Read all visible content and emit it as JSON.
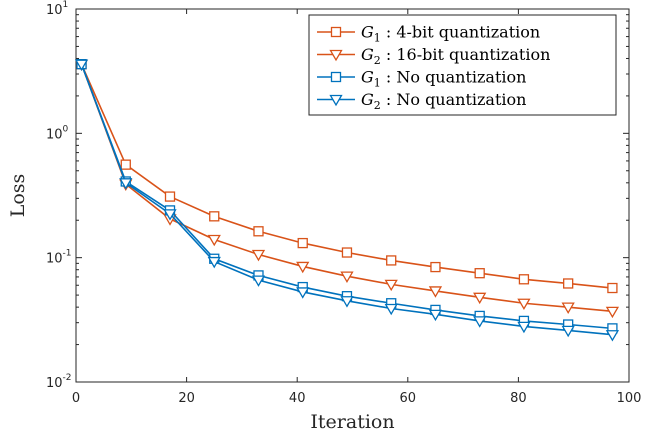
{
  "chart_data": {
    "type": "line",
    "title": "",
    "xlabel": "Iteration",
    "ylabel": "Loss",
    "xlim": [
      0,
      100
    ],
    "ylim": [
      0.01,
      10
    ],
    "yscale": "log",
    "xticks": [
      0,
      20,
      40,
      60,
      80,
      100
    ],
    "yticks": [
      {
        "value": 0.01,
        "base": "10",
        "exp": "-2"
      },
      {
        "value": 0.1,
        "base": "10",
        "exp": "-1"
      },
      {
        "value": 1,
        "base": "10",
        "exp": "0"
      },
      {
        "value": 10,
        "base": "10",
        "exp": "1"
      }
    ],
    "grid": false,
    "legend_position": "top-right",
    "x": [
      1,
      9,
      17,
      25,
      33,
      41,
      49,
      57,
      65,
      73,
      81,
      89,
      97
    ],
    "series": [
      {
        "name": "4-bit quantization",
        "symbol": "G1",
        "marker": "square",
        "color": "#D95319",
        "values": [
          3.6,
          0.56,
          0.31,
          0.215,
          0.163,
          0.131,
          0.11,
          0.095,
          0.084,
          0.075,
          0.067,
          0.062,
          0.057
        ]
      },
      {
        "name": "16-bit quantization",
        "symbol": "G2",
        "marker": "triangle-down",
        "color": "#D95319",
        "values": [
          3.6,
          0.39,
          0.205,
          0.14,
          0.106,
          0.085,
          0.071,
          0.061,
          0.054,
          0.048,
          0.043,
          0.04,
          0.037
        ]
      },
      {
        "name": "No quantization",
        "symbol": "G1",
        "marker": "square",
        "color": "#0072BD",
        "values": [
          3.6,
          0.41,
          0.24,
          0.098,
          0.072,
          0.058,
          0.049,
          0.043,
          0.038,
          0.034,
          0.031,
          0.029,
          0.027
        ]
      },
      {
        "name": "No quantization",
        "symbol": "G2",
        "marker": "triangle-down",
        "color": "#0072BD",
        "values": [
          3.6,
          0.4,
          0.225,
          0.093,
          0.066,
          0.053,
          0.045,
          0.039,
          0.035,
          0.031,
          0.028,
          0.026,
          0.024
        ]
      }
    ]
  },
  "legend": {
    "separator": ":",
    "subscripts": [
      "1",
      "2",
      "1",
      "2"
    ]
  }
}
